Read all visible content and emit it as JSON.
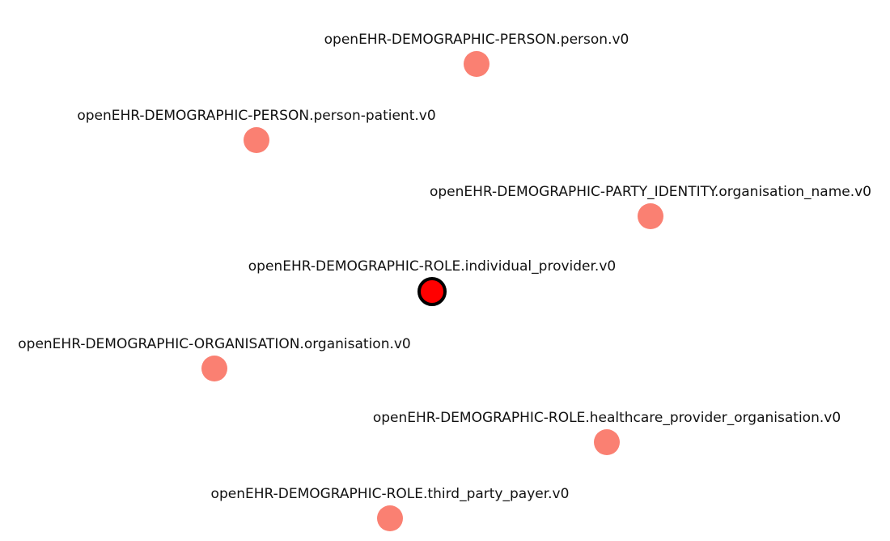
{
  "graph": {
    "colors": {
      "node_fill": "#fa8072",
      "selected_fill": "#ff0000",
      "selected_stroke": "#000000"
    },
    "nodes": [
      {
        "id": "person",
        "label": "openEHR-DEMOGRAPHIC-PERSON.person.v0",
        "selected": false
      },
      {
        "id": "person-patient",
        "label": "openEHR-DEMOGRAPHIC-PERSON.person-patient.v0",
        "selected": false
      },
      {
        "id": "organisation-name",
        "label": "openEHR-DEMOGRAPHIC-PARTY_IDENTITY.organisation_name.v0",
        "selected": false
      },
      {
        "id": "individual-provider",
        "label": "openEHR-DEMOGRAPHIC-ROLE.individual_provider.v0",
        "selected": true
      },
      {
        "id": "organisation",
        "label": "openEHR-DEMOGRAPHIC-ORGANISATION.organisation.v0",
        "selected": false
      },
      {
        "id": "healthcare-provider-organisation",
        "label": "openEHR-DEMOGRAPHIC-ROLE.healthcare_provider_organisation.v0",
        "selected": false
      },
      {
        "id": "third-party-payer",
        "label": "openEHR-DEMOGRAPHIC-ROLE.third_party_payer.v0",
        "selected": false
      }
    ]
  }
}
